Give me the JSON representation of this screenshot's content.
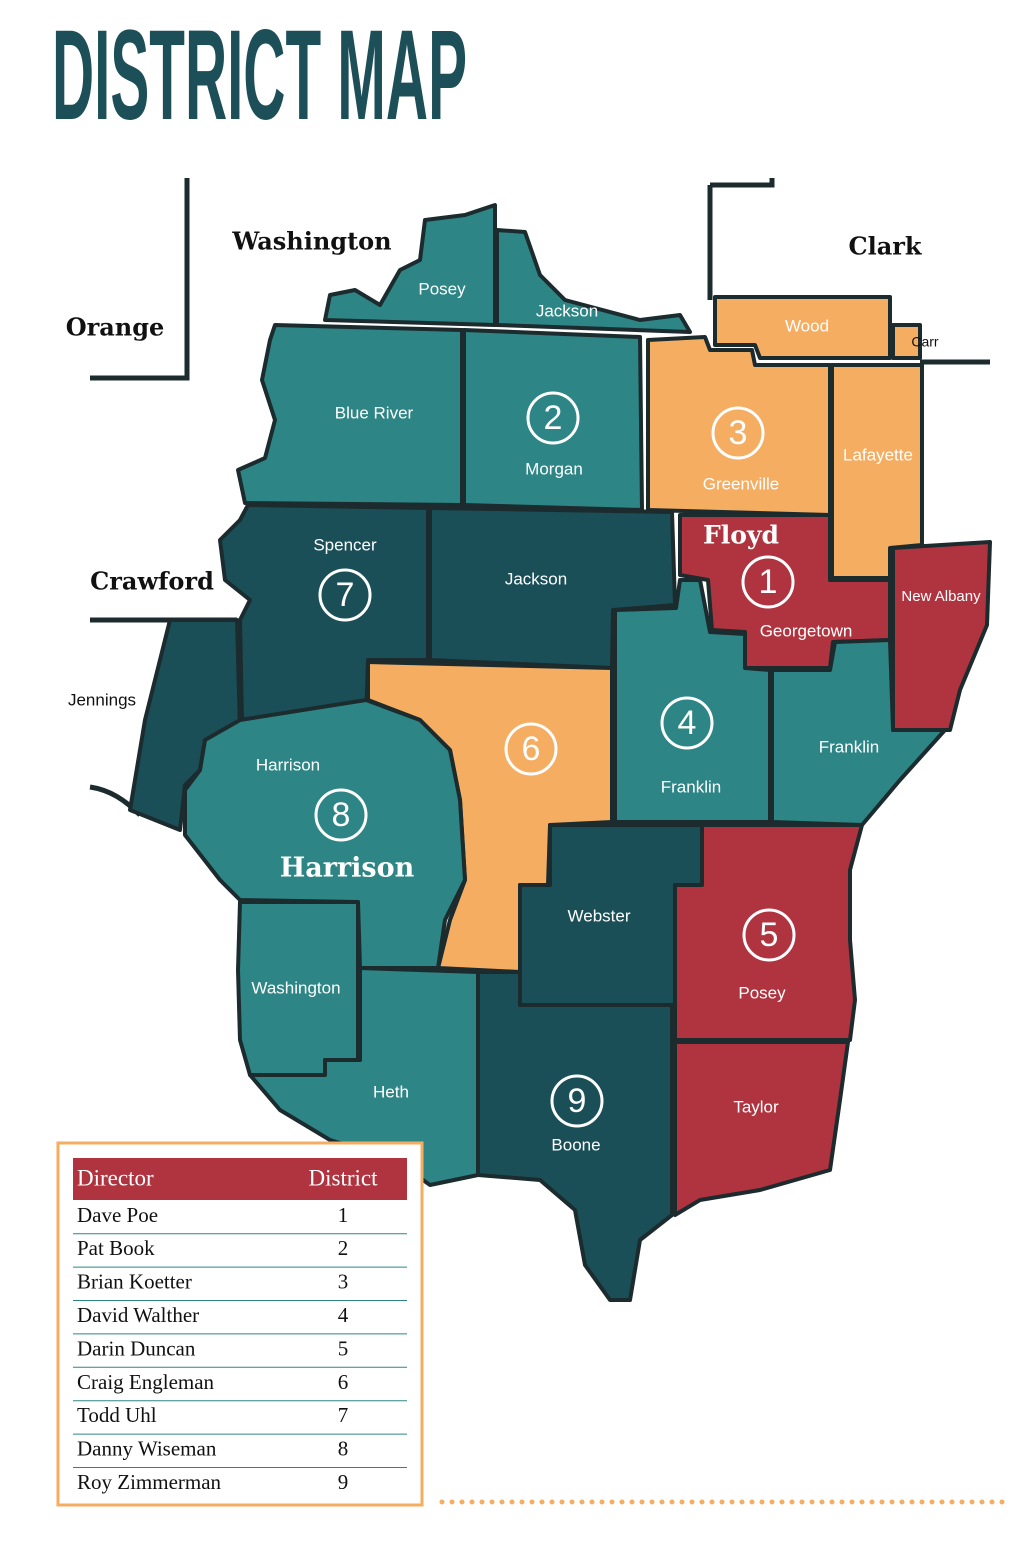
{
  "header": {
    "title": "DISTRICT MAP"
  },
  "counties": [
    "Washington",
    "Clark",
    "Orange",
    "Crawford",
    "Floyd",
    "Harrison"
  ],
  "townships": [
    "Posey",
    "Jackson",
    "Wood",
    "Carr",
    "Blue River",
    "Morgan",
    "Greenville",
    "Lafayette",
    "Spencer",
    "Jackson",
    "Georgetown",
    "New Albany",
    "Jennings",
    "Harrison",
    "Franklin",
    "Franklin",
    "Webster",
    "Washington",
    "Posey",
    "Heth",
    "Boone",
    "Taylor"
  ],
  "district_markers": [
    1,
    2,
    3,
    4,
    5,
    6,
    7,
    8,
    9
  ],
  "table": {
    "header": [
      "Director",
      "District"
    ],
    "rows": [
      [
        "Dave Poe",
        1
      ],
      [
        "Pat Book",
        2
      ],
      [
        "Brian Koetter",
        3
      ],
      [
        "David Walther",
        4
      ],
      [
        "Darin Duncan",
        5
      ],
      [
        "Craig Engleman",
        6
      ],
      [
        "Todd Uhl",
        7
      ],
      [
        "Danny Wiseman",
        8
      ],
      [
        "Roy Zimmerman",
        9
      ]
    ]
  }
}
